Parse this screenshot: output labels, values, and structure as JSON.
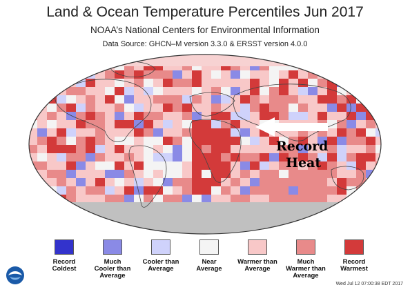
{
  "title": "Land & Ocean Temperature Percentiles Jun 2017",
  "subtitle": "NOAA’s National Centers for Environmental Information",
  "source": "Data Source: GHCN–M version 3.3.0 & ERSST version 4.0.0",
  "annotation": {
    "line1": "Record",
    "line2": "Heat"
  },
  "legend": [
    {
      "label1": "Record",
      "label2": "Coldest",
      "label3": "",
      "color": "#3333cc"
    },
    {
      "label1": "Much",
      "label2": "Cooler than",
      "label3": "Average",
      "color": "#8a8ae6"
    },
    {
      "label1": "Cooler than",
      "label2": "Average",
      "label3": "",
      "color": "#cfd2fb"
    },
    {
      "label1": "Near",
      "label2": "Average",
      "label3": "",
      "color": "#f4f4f4"
    },
    {
      "label1": "Warmer than",
      "label2": "Average",
      "label3": "",
      "color": "#f8c8c8"
    },
    {
      "label1": "Much",
      "label2": "Warmer than",
      "label3": "Average",
      "color": "#e88a8a"
    },
    {
      "label1": "Record",
      "label2": "Warmest",
      "label3": "",
      "color": "#d33a3a"
    }
  ],
  "timestamp": "Wed Jul 12 07:00:38 EDT 2017",
  "icons": [
    "noaa-logo-icon",
    "arrow-icon"
  ]
}
